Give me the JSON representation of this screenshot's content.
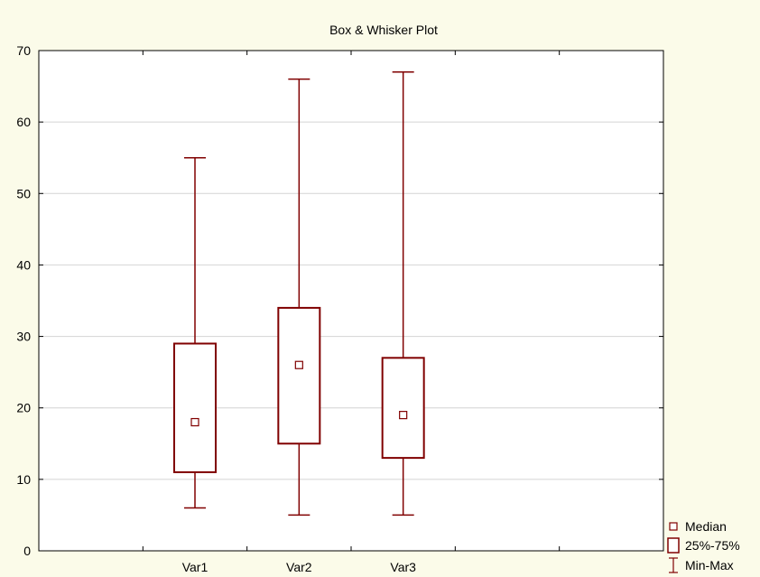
{
  "chart_data": {
    "type": "box",
    "title": "Box & Whisker Plot",
    "xlabel": "",
    "ylabel": "",
    "ylim": [
      0,
      70
    ],
    "yticks": [
      0,
      10,
      20,
      30,
      40,
      50,
      60,
      70
    ],
    "grid": true,
    "categories": [
      "Var1",
      "Var2",
      "Var3"
    ],
    "boxes": [
      {
        "name": "Var1",
        "min": 6,
        "q1": 11,
        "median": 18,
        "q3": 29,
        "max": 55
      },
      {
        "name": "Var2",
        "min": 5,
        "q1": 15,
        "median": 26,
        "q3": 34,
        "max": 66
      },
      {
        "name": "Var3",
        "min": 5,
        "q1": 13,
        "median": 19,
        "q3": 27,
        "max": 67
      }
    ],
    "legend": {
      "position": "bottom-right",
      "entries": [
        "Median",
        "25%-75%",
        "Min-Max"
      ]
    },
    "colors": {
      "background": "#fbfbe9",
      "plot_area": "#ffffff",
      "series": "#800000",
      "grid": "#d4d4d4",
      "axis": "#000000"
    }
  }
}
